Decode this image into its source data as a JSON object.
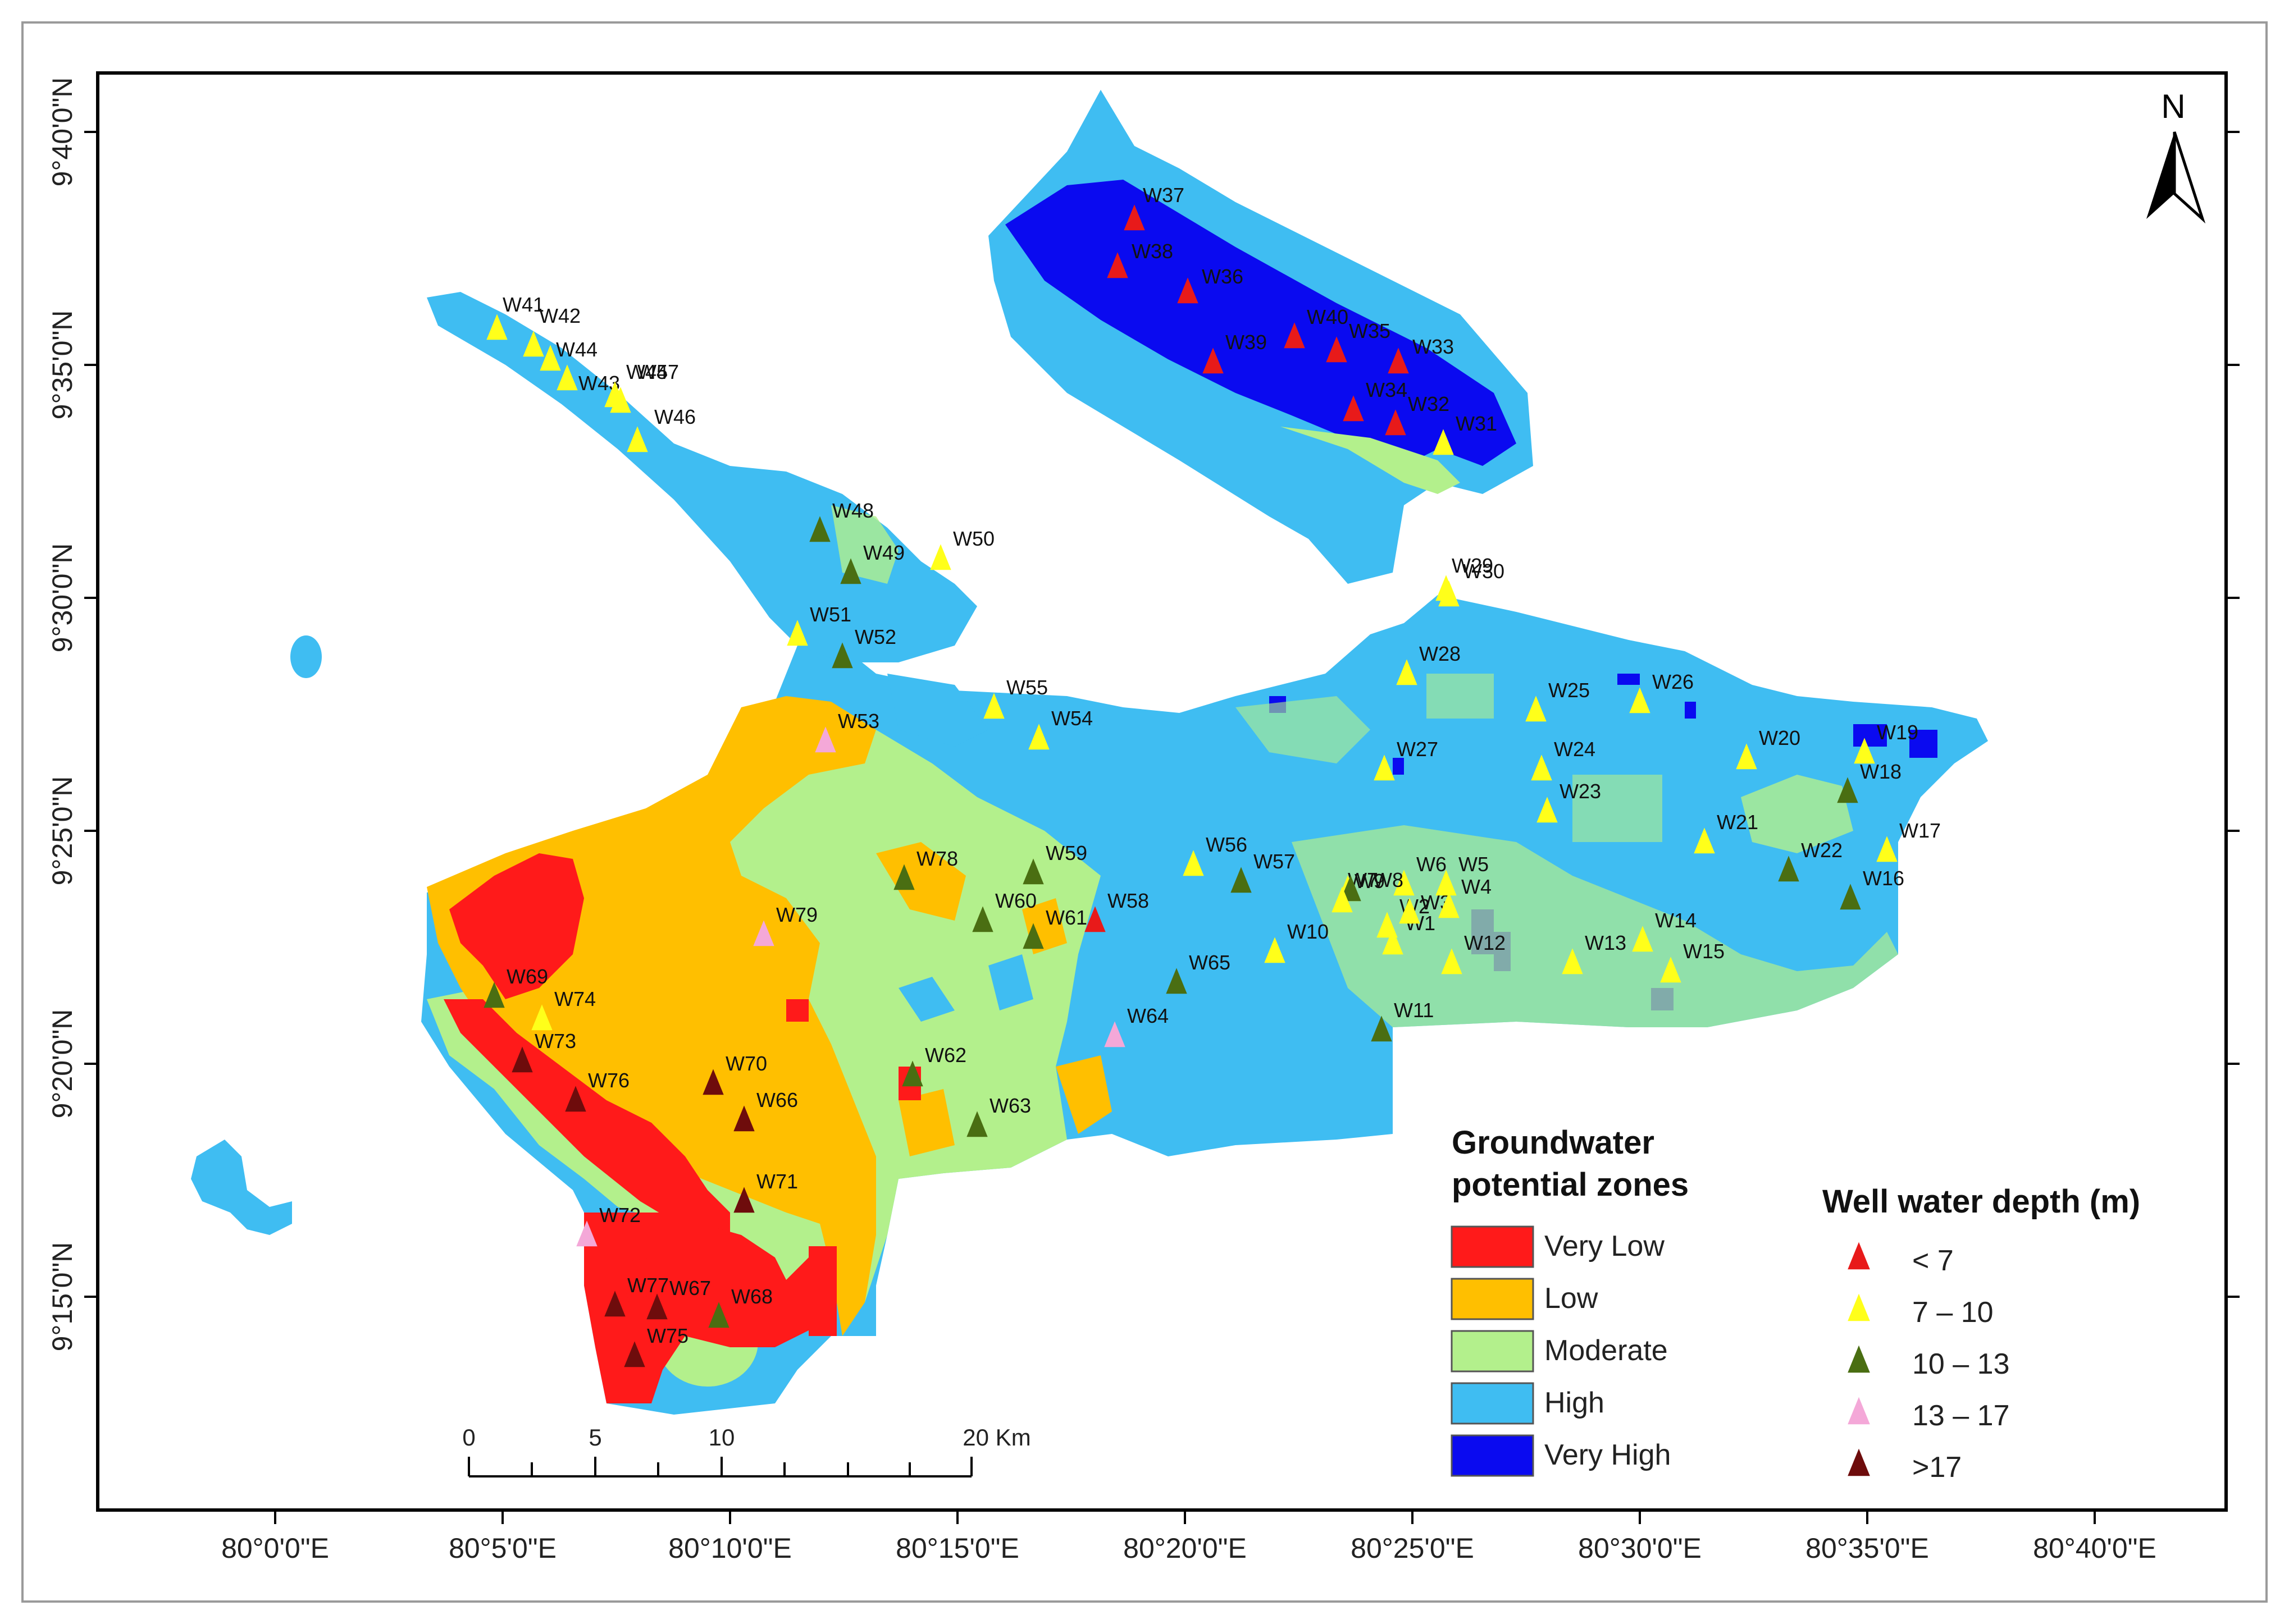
{
  "map": {
    "north_label": "N",
    "lat_labels": [
      "9°40'0\"N",
      "9°35'0\"N",
      "9°30'0\"N",
      "9°25'0\"N",
      "9°20'0\"N",
      "9°15'0\"N"
    ],
    "lon_labels": [
      "80°0'0\"E",
      "80°5'0\"E",
      "80°10'0\"E",
      "80°15'0\"E",
      "80°20'0\"E",
      "80°25'0\"E",
      "80°30'0\"E",
      "80°35'0\"E",
      "80°40'0\"E"
    ]
  },
  "zone_legend": {
    "title_line1": "Groundwater",
    "title_line2": "potential zones",
    "items": [
      {
        "label": "Very Low",
        "color": "#ff1a1a"
      },
      {
        "label": "Low",
        "color": "#ffbf00"
      },
      {
        "label": "Moderate",
        "color": "#b3f08c"
      },
      {
        "label": "High",
        "color": "#3fbdf2"
      },
      {
        "label": "Very High",
        "color": "#0a0af0"
      }
    ]
  },
  "well_legend": {
    "title": "Well water depth (m)",
    "items": [
      {
        "label": "< 7",
        "color": "#e81a1a"
      },
      {
        "label": "7 – 10",
        "color": "#ffff1a"
      },
      {
        "label": "10 – 13",
        "color": "#4a6e12"
      },
      {
        "label": "13 – 17",
        "color": "#f4a8d8"
      },
      {
        "label": ">17",
        "color": "#6e0c0c"
      }
    ]
  },
  "scale_bar": {
    "labels": [
      "0",
      "5",
      "10",
      "20 Km"
    ]
  },
  "wells": [
    {
      "id": "W1",
      "class": 1
    },
    {
      "id": "W2",
      "class": 1
    },
    {
      "id": "W3",
      "class": 1
    },
    {
      "id": "W4",
      "class": 1
    },
    {
      "id": "W5",
      "class": 1
    },
    {
      "id": "W6",
      "class": 1
    },
    {
      "id": "W7",
      "class": 1
    },
    {
      "id": "W8",
      "class": 2
    },
    {
      "id": "W9",
      "class": 1
    },
    {
      "id": "W10",
      "class": 1
    },
    {
      "id": "W11",
      "class": 2
    },
    {
      "id": "W12",
      "class": 1
    },
    {
      "id": "W13",
      "class": 1
    },
    {
      "id": "W14",
      "class": 1
    },
    {
      "id": "W15",
      "class": 1
    },
    {
      "id": "W16",
      "class": 2
    },
    {
      "id": "W17",
      "class": 1
    },
    {
      "id": "W18",
      "class": 2
    },
    {
      "id": "W19",
      "class": 1
    },
    {
      "id": "W20",
      "class": 1
    },
    {
      "id": "W21",
      "class": 1
    },
    {
      "id": "W22",
      "class": 2
    },
    {
      "id": "W23",
      "class": 1
    },
    {
      "id": "W24",
      "class": 1
    },
    {
      "id": "W25",
      "class": 1
    },
    {
      "id": "W26",
      "class": 1
    },
    {
      "id": "W27",
      "class": 1
    },
    {
      "id": "W28",
      "class": 1
    },
    {
      "id": "W29",
      "class": 1
    },
    {
      "id": "W30",
      "class": 1
    },
    {
      "id": "W31",
      "class": 1
    },
    {
      "id": "W32",
      "class": 0
    },
    {
      "id": "W33",
      "class": 0
    },
    {
      "id": "W34",
      "class": 0
    },
    {
      "id": "W35",
      "class": 0
    },
    {
      "id": "W36",
      "class": 0
    },
    {
      "id": "W37",
      "class": 0
    },
    {
      "id": "W38",
      "class": 0
    },
    {
      "id": "W39",
      "class": 0
    },
    {
      "id": "W40",
      "class": 0
    },
    {
      "id": "W41",
      "class": 1
    },
    {
      "id": "W42",
      "class": 1
    },
    {
      "id": "W43",
      "class": 1
    },
    {
      "id": "W44",
      "class": 1
    },
    {
      "id": "W45",
      "class": 1
    },
    {
      "id": "W46",
      "class": 1
    },
    {
      "id": "W47",
      "class": 1
    },
    {
      "id": "W48",
      "class": 2
    },
    {
      "id": "W49",
      "class": 2
    },
    {
      "id": "W50",
      "class": 1
    },
    {
      "id": "W51",
      "class": 1
    },
    {
      "id": "W52",
      "class": 2
    },
    {
      "id": "W53",
      "class": 3
    },
    {
      "id": "W54",
      "class": 1
    },
    {
      "id": "W55",
      "class": 1
    },
    {
      "id": "W56",
      "class": 1
    },
    {
      "id": "W57",
      "class": 2
    },
    {
      "id": "W58",
      "class": 0
    },
    {
      "id": "W59",
      "class": 2
    },
    {
      "id": "W60",
      "class": 2
    },
    {
      "id": "W61",
      "class": 2
    },
    {
      "id": "W62",
      "class": 2
    },
    {
      "id": "W63",
      "class": 2
    },
    {
      "id": "W64",
      "class": 3
    },
    {
      "id": "W65",
      "class": 2
    },
    {
      "id": "W66",
      "class": 4
    },
    {
      "id": "W67",
      "class": 4
    },
    {
      "id": "W68",
      "class": 2
    },
    {
      "id": "W69",
      "class": 2
    },
    {
      "id": "W70",
      "class": 4
    },
    {
      "id": "W71",
      "class": 4
    },
    {
      "id": "W72",
      "class": 3
    },
    {
      "id": "W73",
      "class": 4
    },
    {
      "id": "W74",
      "class": 1
    },
    {
      "id": "W75",
      "class": 4
    },
    {
      "id": "W76",
      "class": 4
    },
    {
      "id": "W77",
      "class": 4
    },
    {
      "id": "W78",
      "class": 2
    },
    {
      "id": "W79",
      "class": 3
    }
  ]
}
